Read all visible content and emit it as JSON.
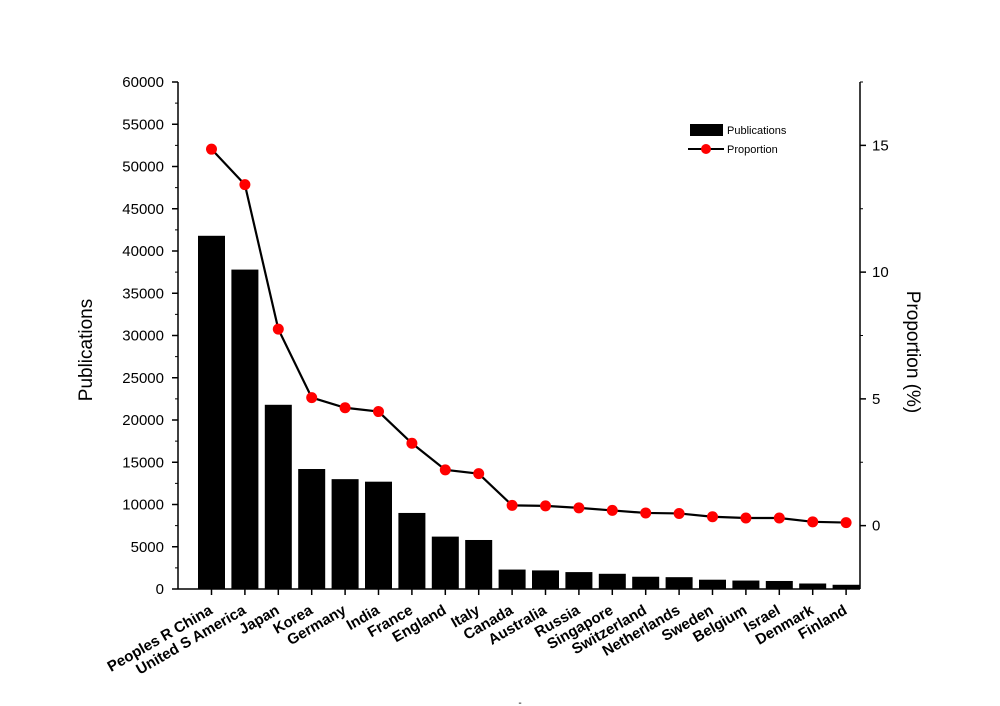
{
  "chart_data": {
    "type": "bar",
    "title": "",
    "xlabel": "",
    "ylabel": "Publications",
    "y2label": "Proportion (%)",
    "ylim": [
      0,
      60000
    ],
    "y2lim": [
      -2.5,
      17.5
    ],
    "yticks": [
      0,
      5000,
      10000,
      15000,
      20000,
      25000,
      30000,
      35000,
      40000,
      45000,
      50000,
      55000,
      60000
    ],
    "y2ticks": [
      0,
      5,
      10,
      15
    ],
    "grid": false,
    "legend_position": "top-right",
    "categories": [
      "Peoples R China",
      "United S America",
      "Japan",
      "Korea",
      "Germany",
      "India",
      "France",
      "England",
      "Italy",
      "Canada",
      "Australia",
      "Russia",
      "Singapore",
      "Switzerland",
      "Netherlands",
      "Sweden",
      "Belgium",
      "Israel",
      "Denmark",
      "Finland"
    ],
    "series": [
      {
        "name": "Publications",
        "type": "bar",
        "axis": "left",
        "color": "#000000",
        "values": [
          41800,
          37800,
          21800,
          14200,
          13000,
          12700,
          9000,
          6200,
          5800,
          2300,
          2200,
          2000,
          1800,
          1450,
          1400,
          1100,
          1000,
          950,
          650,
          500
        ]
      },
      {
        "name": "Proportion",
        "type": "line",
        "axis": "right",
        "color": "#000000",
        "marker_color": "#ff0000",
        "values": [
          14.85,
          13.45,
          7.75,
          5.05,
          4.65,
          4.5,
          3.25,
          2.2,
          2.05,
          0.8,
          0.78,
          0.7,
          0.6,
          0.5,
          0.48,
          0.35,
          0.3,
          0.3,
          0.15,
          0.12
        ]
      }
    ]
  },
  "footer_mark": "-"
}
